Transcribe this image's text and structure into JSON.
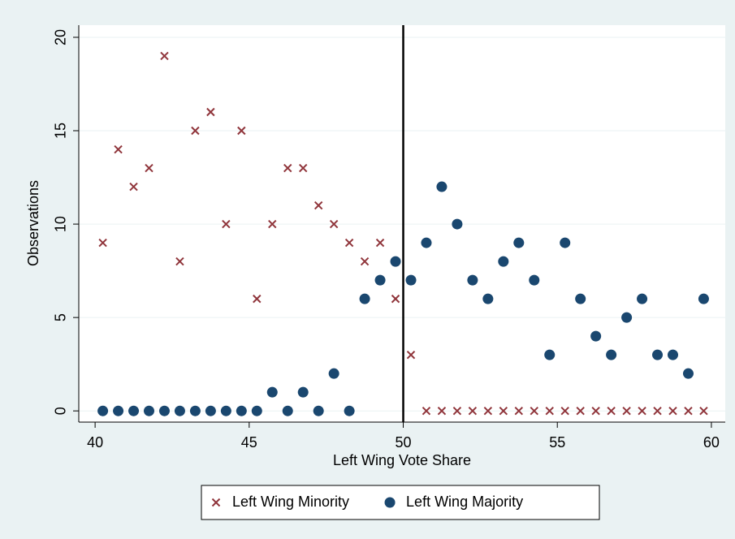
{
  "chart_data": {
    "type": "scatter",
    "x_label": "Left Wing Vote Share",
    "y_label": "Observations",
    "x": [
      40.25,
      40.75,
      41.25,
      41.75,
      42.25,
      42.75,
      43.25,
      43.75,
      44.25,
      44.75,
      45.25,
      45.75,
      46.25,
      46.75,
      47.25,
      47.75,
      48.25,
      48.75,
      49.25,
      49.75,
      50.25,
      50.75,
      51.25,
      51.75,
      52.25,
      52.75,
      53.25,
      53.75,
      54.25,
      54.75,
      55.25,
      55.75,
      56.25,
      56.75,
      57.25,
      57.75,
      58.25,
      58.75,
      59.25,
      59.75
    ],
    "series": [
      {
        "name": "Left Wing Minority",
        "color": "#90353b",
        "marker": "x",
        "values": [
          9,
          14,
          12,
          13,
          19,
          8,
          15,
          16,
          10,
          15,
          6,
          10,
          13,
          13,
          11,
          10,
          9,
          8,
          9,
          6,
          3,
          0,
          0,
          0,
          0,
          0,
          0,
          0,
          0,
          0,
          0,
          0,
          0,
          0,
          0,
          0,
          0,
          0,
          0,
          0
        ]
      },
      {
        "name": "Left Wing Majority",
        "color": "#1a476f",
        "marker": "circle",
        "values": [
          0,
          0,
          0,
          0,
          0,
          0,
          0,
          0,
          0,
          0,
          0,
          1,
          0,
          1,
          0,
          2,
          0,
          6,
          7,
          8,
          7,
          9,
          12,
          10,
          7,
          6,
          8,
          9,
          7,
          3,
          9,
          6,
          4,
          3,
          5,
          6,
          3,
          3,
          2,
          6
        ]
      }
    ],
    "xlim": [
      39.47,
      60.45
    ],
    "xticks": [
      40,
      45,
      50,
      55,
      60
    ],
    "ylim": [
      -0.6,
      20.65
    ],
    "yticks": [
      0,
      5,
      10,
      15,
      20
    ],
    "vline": 50,
    "grid": true,
    "legend": "bottom"
  }
}
